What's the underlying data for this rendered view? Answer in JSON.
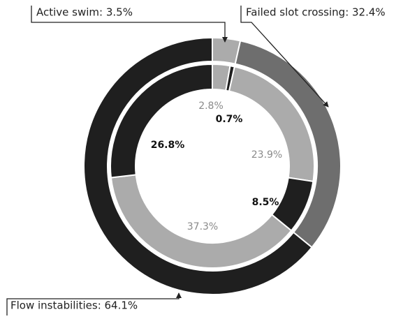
{
  "chart_data": {
    "type": "nested-donut",
    "outer": {
      "values": [
        3.5,
        32.4,
        64.1
      ],
      "value_labels": [
        "Active swim: 3.5%",
        "Failed slot crossing: 32.4%",
        "Flow instabilities: 64.1%"
      ],
      "colors": [
        "#ababab",
        "#6e6e6e",
        "#1f1f1f"
      ]
    },
    "inner": {
      "values": [
        2.8,
        0.7,
        23.9,
        8.5,
        37.3,
        26.8
      ],
      "value_labels": [
        "2.8%",
        "0.7%",
        "23.9%",
        "8.5%",
        "37.3%",
        "26.8%"
      ],
      "colors": [
        "#ababab",
        "#1f1f1f",
        "#ababab",
        "#1f1f1f",
        "#ababab",
        "#1f1f1f"
      ]
    }
  }
}
